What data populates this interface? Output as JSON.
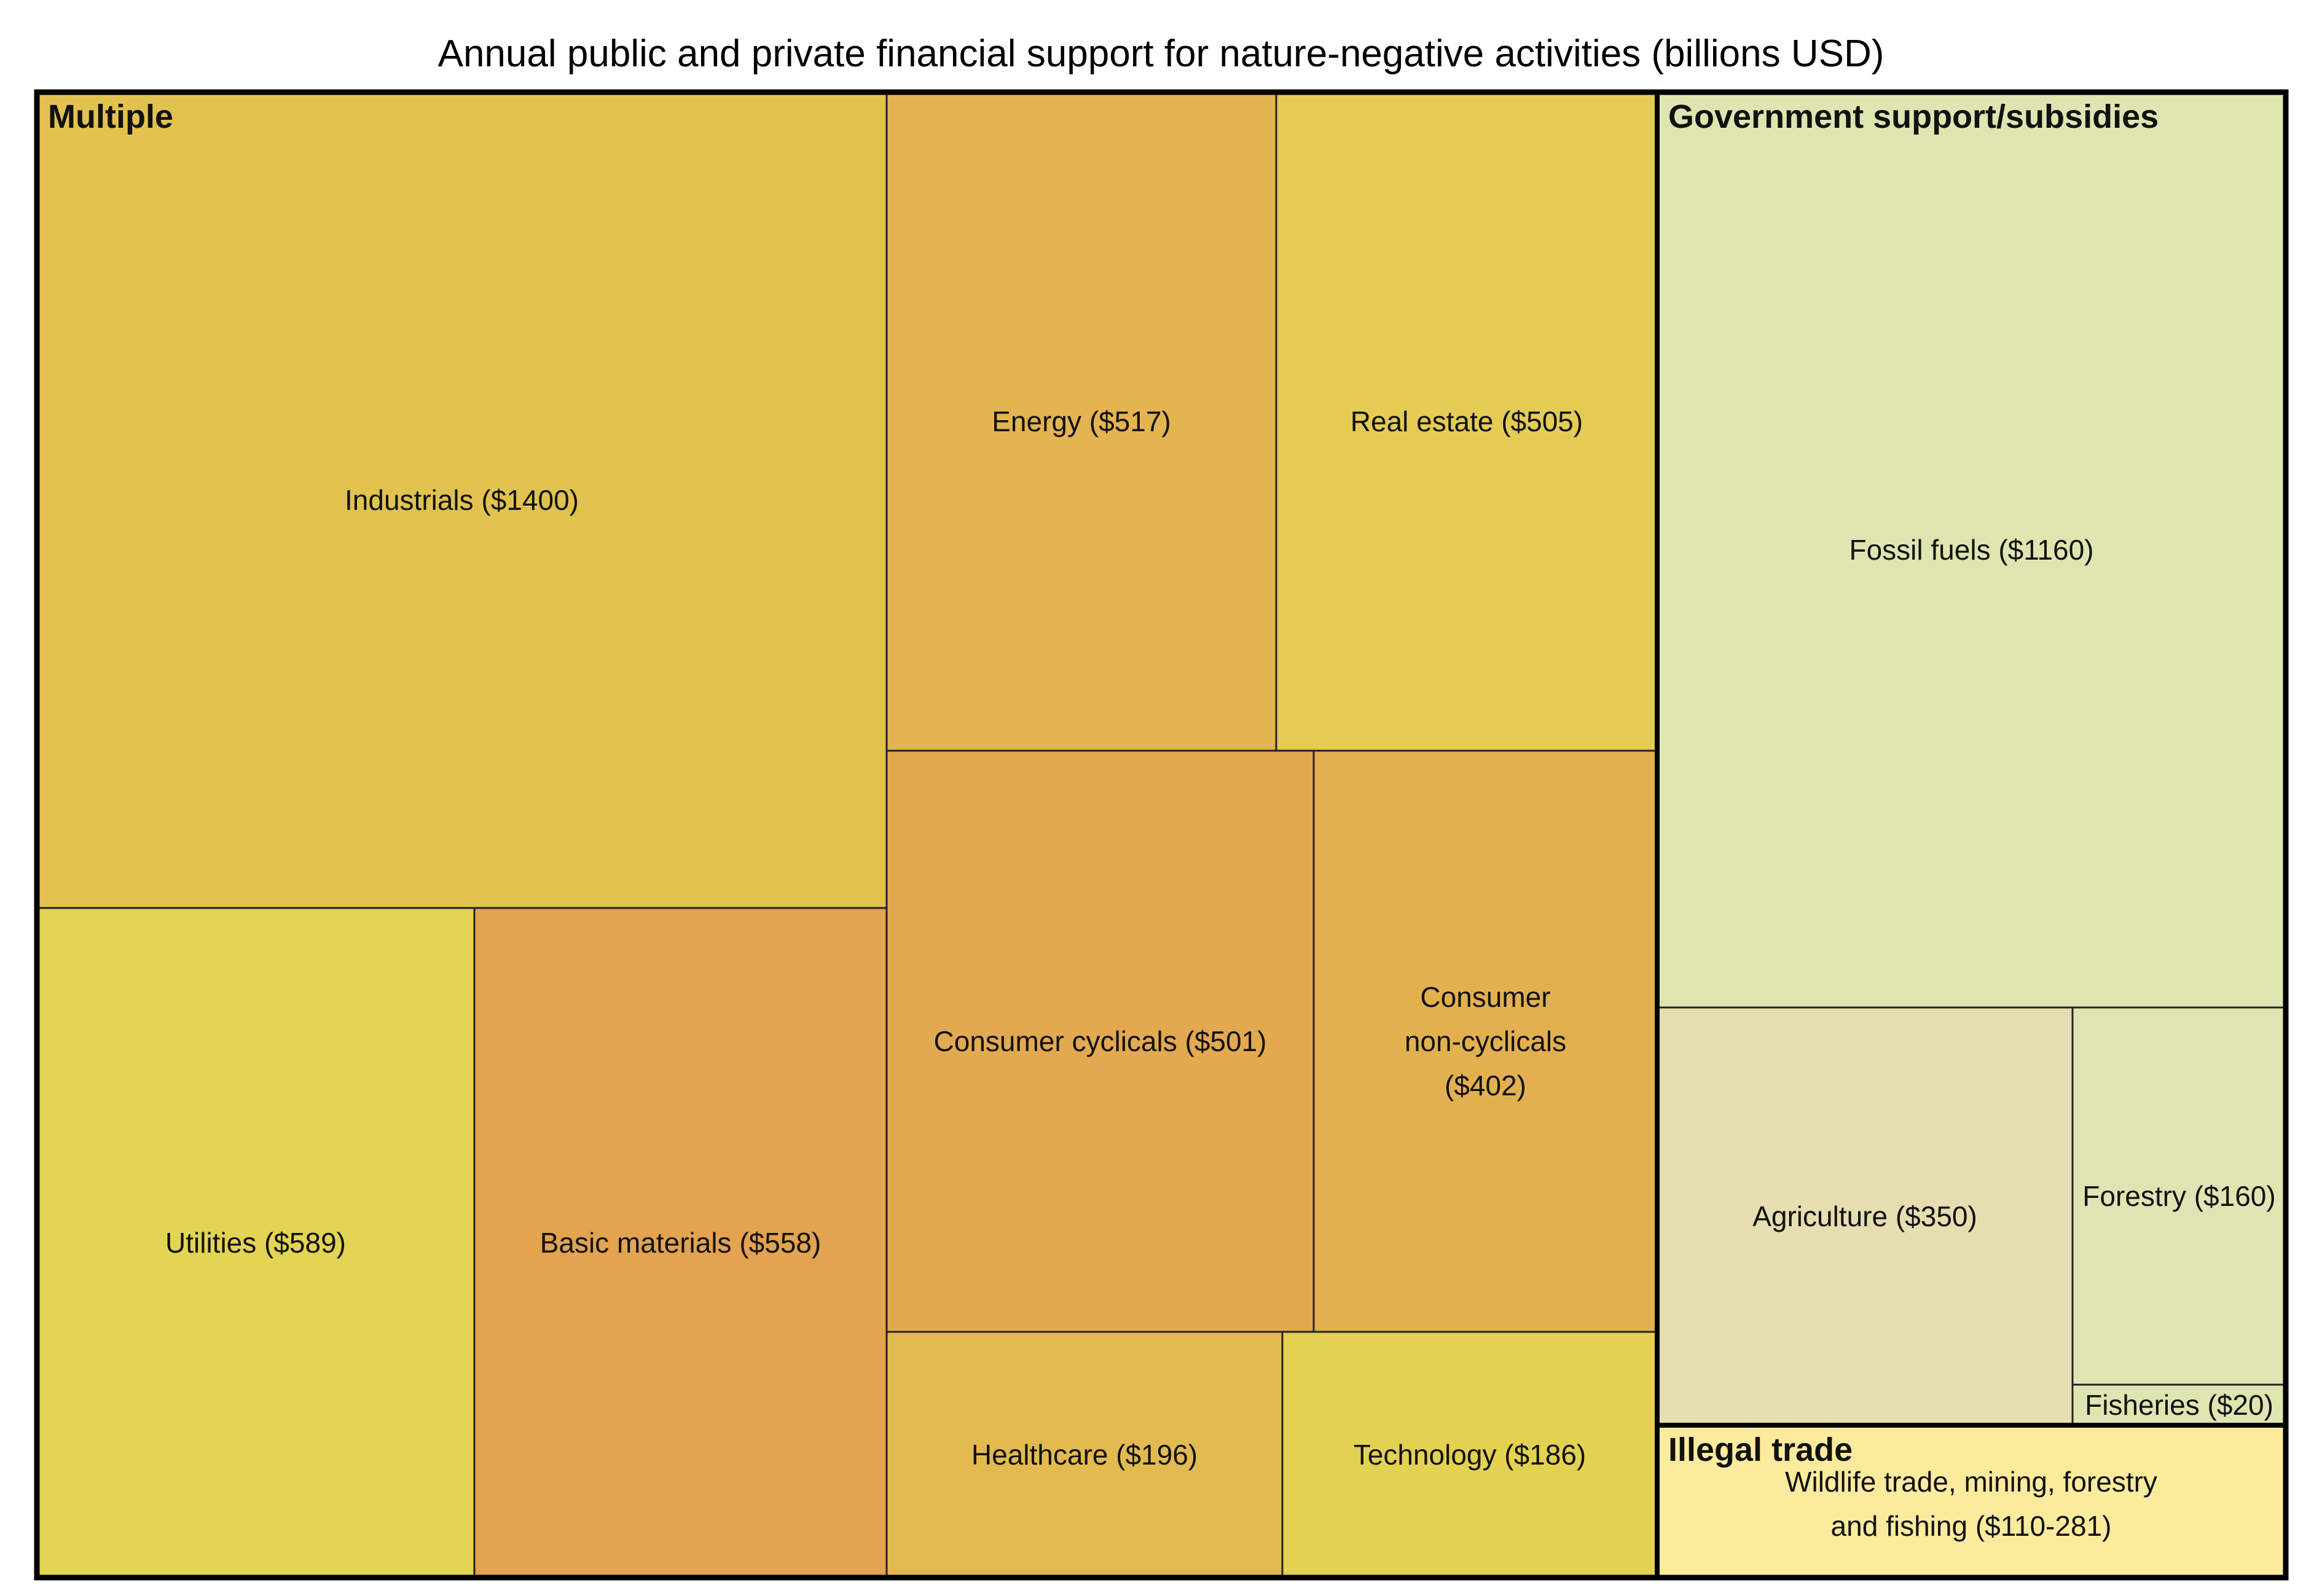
{
  "chart_data": {
    "type": "treemap",
    "title": "Annual public and private financial support for nature-negative activities (billions USD)",
    "groups": [
      {
        "name": "Multiple",
        "items": [
          {
            "label": "Industrials ($1400)",
            "value": 1400,
            "color": "#E2C24F"
          },
          {
            "label": "Utilities ($589)",
            "value": 589,
            "color": "#E3D452"
          },
          {
            "label": "Basic materials ($558)",
            "value": 558,
            "color": "#E3A34F"
          },
          {
            "label": "Energy ($517)",
            "value": 517,
            "color": "#E3B450"
          },
          {
            "label": "Real estate ($505)",
            "value": 505,
            "color": "#E4CC54"
          },
          {
            "label": "Consumer cyclicals ($501)",
            "value": 501,
            "color": "#E3A950"
          },
          {
            "label": "Consumer non-cyclicals ($402)",
            "lines": [
              "Consumer",
              "non-cyclicals",
              "($402)"
            ],
            "value": 402,
            "color": "#E3B050"
          },
          {
            "label": "Healthcare ($196)",
            "value": 196,
            "color": "#E3BA50"
          },
          {
            "label": "Technology ($186)",
            "value": 186,
            "color": "#E3D151"
          }
        ]
      },
      {
        "name": "Government support/subsidies",
        "items": [
          {
            "label": "Fossil fuels ($1160)",
            "value": 1160,
            "color": "#DFE5B0"
          },
          {
            "label": "Agriculture ($350)",
            "value": 350,
            "color": "#E6DDB0"
          },
          {
            "label": "Forestry ($160)",
            "value": 160,
            "color": "#E1E4B2"
          },
          {
            "label": "Fisheries ($20)",
            "value": 20,
            "color": "#DFE5B0"
          }
        ]
      },
      {
        "name": "Illegal trade",
        "items": [
          {
            "label": "Wildlife trade, mining, forestry and fishing ($110-281)",
            "lines": [
              "Wildlife trade, mining, forestry",
              "and fishing ($110-281)"
            ],
            "value": 195.5,
            "range": [
              110,
              281
            ],
            "color": "#FDEB9D"
          }
        ]
      }
    ]
  }
}
